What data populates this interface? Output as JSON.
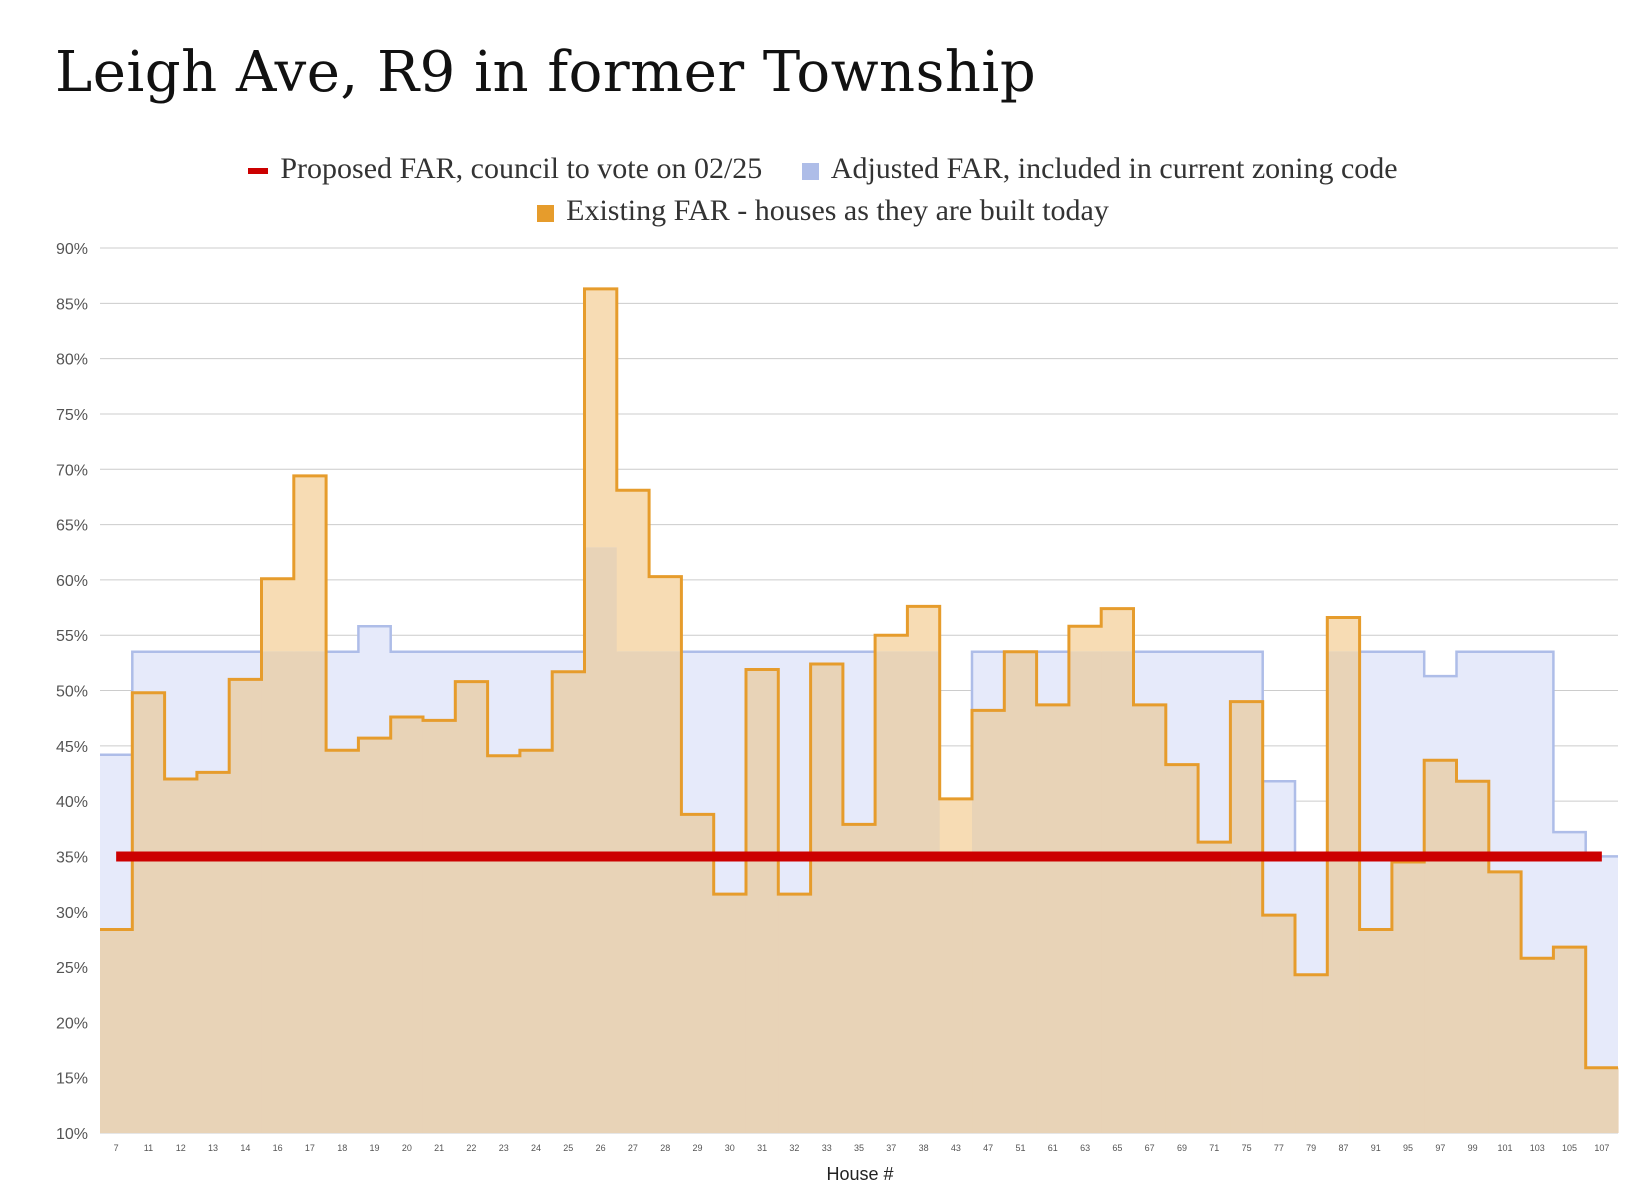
{
  "title": "Leigh Ave, R9 in former Township",
  "colors": {
    "proposed": "#cc0000",
    "adjusted_line": "#aebde8",
    "adjusted_fill": "#e6eafa",
    "existing_line": "#e69c2c",
    "existing_fill": "#f7dcb4",
    "overlap_fill": "#e8d3b7",
    "grid": "#cccccc",
    "axis_text": "#555555"
  },
  "chart_data": {
    "type": "area",
    "step": true,
    "xlabel": "House #",
    "ylabel": "",
    "ylim": [
      0.1,
      0.9
    ],
    "yticks": [
      0.1,
      0.15,
      0.2,
      0.25,
      0.3,
      0.35,
      0.4,
      0.45,
      0.5,
      0.55,
      0.6,
      0.65,
      0.7,
      0.75,
      0.8,
      0.85,
      0.9
    ],
    "ytick_labels": [
      "10%",
      "15%",
      "20%",
      "25%",
      "30%",
      "35%",
      "40%",
      "45%",
      "50%",
      "55%",
      "60%",
      "65%",
      "70%",
      "75%",
      "80%",
      "85%",
      "90%"
    ],
    "grid": true,
    "legend_position": "top",
    "categories": [
      "7",
      "11",
      "12",
      "13",
      "14",
      "16",
      "17",
      "18",
      "19",
      "20",
      "21",
      "22",
      "23",
      "24",
      "25",
      "26",
      "27",
      "28",
      "29",
      "30",
      "31",
      "32",
      "33",
      "35",
      "37",
      "38",
      "43",
      "47",
      "51",
      "61",
      "63",
      "65",
      "67",
      "69",
      "71",
      "75",
      "77",
      "79",
      "87",
      "91",
      "95",
      "97",
      "99",
      "101",
      "103",
      "105",
      "107"
    ],
    "series": [
      {
        "name": "Proposed FAR, council to vote on 02/25",
        "style": "line",
        "values": [
          0.35,
          0.35,
          0.35,
          0.35,
          0.35,
          0.35,
          0.35,
          0.35,
          0.35,
          0.35,
          0.35,
          0.35,
          0.35,
          0.35,
          0.35,
          0.35,
          0.35,
          0.35,
          0.35,
          0.35,
          0.35,
          0.35,
          0.35,
          0.35,
          0.35,
          0.35,
          0.35,
          0.35,
          0.35,
          0.35,
          0.35,
          0.35,
          0.35,
          0.35,
          0.35,
          0.35,
          0.35,
          0.35,
          0.35,
          0.35,
          0.35,
          0.35,
          0.35,
          0.35,
          0.35,
          0.35,
          0.35
        ]
      },
      {
        "name": "Adjusted FAR, included in current zoning code",
        "style": "step-area",
        "values": [
          0.442,
          0.535,
          0.535,
          0.535,
          0.535,
          0.535,
          0.535,
          0.535,
          0.558,
          0.535,
          0.535,
          0.535,
          0.535,
          0.535,
          0.535,
          0.629,
          0.535,
          0.535,
          0.535,
          0.535,
          0.535,
          0.535,
          0.535,
          0.535,
          0.535,
          0.535,
          0.347,
          0.535,
          0.535,
          0.535,
          0.535,
          0.535,
          0.535,
          0.535,
          0.535,
          0.535,
          0.418,
          0.35,
          0.535,
          0.535,
          0.535,
          0.513,
          0.535,
          0.535,
          0.535,
          0.372,
          0.35
        ]
      },
      {
        "name": "Existing FAR - houses as they are built today",
        "style": "step-area",
        "values": [
          0.284,
          0.498,
          0.42,
          0.426,
          0.51,
          0.601,
          0.694,
          0.446,
          0.457,
          0.476,
          0.473,
          0.508,
          0.441,
          0.446,
          0.517,
          0.863,
          0.681,
          0.603,
          0.388,
          0.316,
          0.519,
          0.316,
          0.524,
          0.379,
          0.55,
          0.576,
          0.402,
          0.482,
          0.535,
          0.487,
          0.558,
          0.574,
          0.487,
          0.433,
          0.363,
          0.49,
          0.297,
          0.243,
          0.566,
          0.284,
          0.345,
          0.437,
          0.418,
          0.336,
          0.258,
          0.268,
          0.159
        ]
      }
    ]
  }
}
